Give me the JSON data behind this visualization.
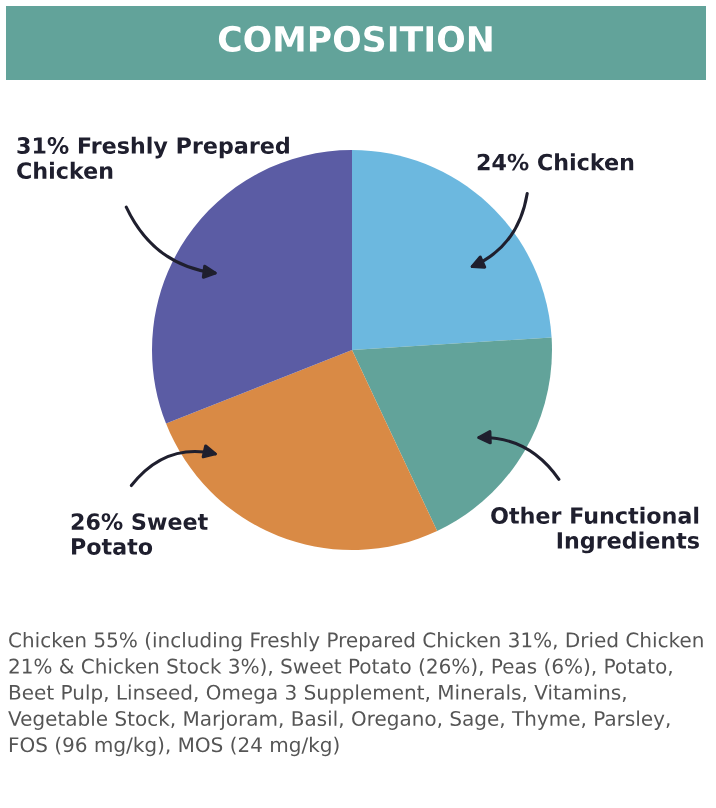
{
  "chart_data": {
    "type": "pie",
    "title": "COMPOSITION",
    "categories": [
      "24% Chicken",
      "Other Functional Ingredients",
      "26% Sweet Potato",
      "31% Freshly Prepared Chicken"
    ],
    "values": [
      24,
      19,
      26,
      31
    ],
    "colors": [
      "#6cb8df",
      "#62a39a",
      "#d98a45",
      "#5b5ca4"
    ],
    "annotations": [
      "Chicken 55% (including Freshly Prepared Chicken 31%, Dried Chicken 21% & Chicken Stock 3%), Sweet Potato (26%), Peas (6%), Potato, Beet Pulp, Linseed, Omega 3 Supplement, Minerals, Vitamins, Vegetable Stock, Marjoram, Basil, Oregano, Sage, Thyme, Parsley, FOS (96 mg/kg), MOS (24 mg/kg)"
    ]
  }
}
